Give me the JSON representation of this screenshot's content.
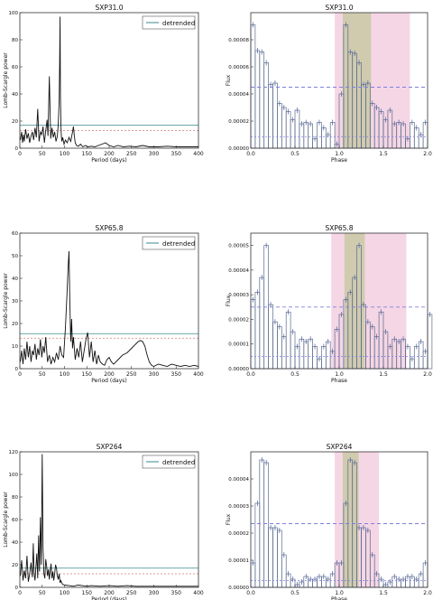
{
  "chart_data": [
    {
      "panel": "periodogram",
      "type": "line",
      "title": "SXP31.0",
      "xlabel": "Period (days)",
      "ylabel": "Lomb-Scargle power",
      "xlim": [
        0,
        400
      ],
      "ylim": [
        0,
        100
      ],
      "xticks": [
        0,
        50,
        100,
        150,
        200,
        250,
        300,
        350,
        400
      ],
      "yticks": [
        0,
        20,
        40,
        60,
        80,
        100
      ],
      "legend": {
        "label": "detrended",
        "placement": "top-right"
      },
      "thresholds": [
        17,
        13
      ],
      "x": [
        1,
        4,
        6,
        8,
        10,
        13,
        16,
        19,
        22,
        25,
        28,
        31,
        34,
        37,
        40,
        43,
        46,
        49,
        52,
        55,
        58,
        61,
        63,
        66,
        69,
        72,
        75,
        78,
        81,
        84,
        86,
        88,
        89,
        90,
        91,
        92,
        93,
        94,
        96,
        99,
        102,
        106,
        110,
        114,
        118,
        120,
        122,
        124,
        127,
        131,
        136,
        141,
        147,
        153,
        160,
        168,
        176,
        184,
        192,
        200,
        210,
        220,
        232,
        245,
        260,
        275,
        290,
        310,
        330,
        350,
        370,
        390,
        400
      ],
      "y": [
        6,
        12,
        4,
        10,
        5,
        14,
        7,
        11,
        4,
        9,
        12,
        6,
        15,
        8,
        29,
        5,
        12,
        10,
        16,
        4,
        13,
        21,
        9,
        53,
        7,
        15,
        8,
        12,
        5,
        9,
        18,
        35,
        62,
        97,
        40,
        18,
        9,
        5,
        8,
        3,
        6,
        4,
        8,
        5,
        12,
        16,
        9,
        4,
        2,
        1.5,
        3,
        1,
        2,
        1,
        1.5,
        1,
        2,
        3,
        4,
        2,
        1,
        2,
        1,
        1.5,
        1,
        2,
        1,
        1,
        1.5,
        1,
        1,
        1,
        1
      ]
    },
    {
      "panel": "phase",
      "type": "bar",
      "title": "SXP31.0",
      "xlabel": "Phase",
      "ylabel": "Flux",
      "xlim": [
        0,
        2
      ],
      "ylim": [
        0,
        0.0001
      ],
      "xticks": [
        0,
        0.5,
        1.0,
        1.5,
        2.0
      ],
      "yticks": [
        0,
        2e-05,
        4e-05,
        6e-05,
        8e-05
      ],
      "ytick_labels": [
        "0.00000",
        "0.00002",
        "0.00004",
        "0.00006",
        "0.00008"
      ],
      "xtick_labels": [
        "0.0",
        "0.5",
        "1.0",
        "1.5",
        "2.0"
      ],
      "phase_start": 0,
      "phase_bin": 0.05,
      "values": [
        9.1e-05,
        7.2e-05,
        7.1e-05,
        6.3e-05,
        4.7e-05,
        4.8e-05,
        3.3e-05,
        3e-05,
        2.7e-05,
        2.1e-05,
        2.8e-05,
        1.8e-05,
        1.9e-05,
        1.8e-05,
        7e-06,
        1.9e-05,
        1.5e-05,
        1e-05,
        1.9e-05,
        3e-06,
        4e-05,
        9.1e-05,
        7.1e-05,
        7e-05,
        6.3e-05,
        4.7e-05,
        4.8e-05,
        3.3e-05,
        3e-05,
        2.7e-05,
        2.1e-05,
        2.8e-05,
        1.8e-05,
        1.9e-05,
        1.8e-05,
        7e-06,
        1.9e-05,
        1.5e-05,
        1e-05,
        1.9e-05
      ],
      "mean_level": 4.5e-05,
      "low_level": 8.5e-06,
      "shaded_regions": [
        {
          "range": [
            0.95,
            1.8
          ],
          "color": "#f3cfe0"
        },
        {
          "range": [
            1.04,
            1.36
          ],
          "color": "#c9c9a6"
        }
      ]
    },
    {
      "panel": "periodogram",
      "type": "line",
      "title": "SXP65.8",
      "xlabel": "Period (days)",
      "ylabel": "Lomb-Scargle power",
      "xlim": [
        0,
        400
      ],
      "ylim": [
        0,
        60
      ],
      "xticks": [
        0,
        50,
        100,
        150,
        200,
        250,
        300,
        350,
        400
      ],
      "yticks": [
        0,
        10,
        20,
        30,
        40,
        50,
        60
      ],
      "legend": {
        "label": "detrended",
        "placement": "top-right"
      },
      "thresholds": [
        15.5,
        13.5
      ],
      "x": [
        1,
        4,
        7,
        10,
        13,
        16,
        19,
        22,
        25,
        28,
        31,
        34,
        37,
        40,
        43,
        46,
        49,
        52,
        55,
        58,
        62,
        66,
        70,
        74,
        78,
        82,
        86,
        90,
        94,
        98,
        102,
        106,
        108,
        110,
        112,
        114,
        116,
        118,
        120,
        124,
        128,
        132,
        136,
        140,
        144,
        148,
        152,
        156,
        160,
        164,
        168,
        172,
        176,
        180,
        185,
        190,
        195,
        200,
        205,
        210,
        220,
        230,
        240,
        250,
        260,
        265,
        270,
        275,
        280,
        285,
        290,
        295,
        300,
        310,
        320,
        330,
        340,
        350,
        360,
        370,
        380,
        390,
        400
      ],
      "y": [
        3,
        8,
        2,
        9,
        4,
        12,
        5,
        10,
        3,
        8,
        6,
        11,
        4,
        9,
        6,
        13,
        5,
        10,
        7,
        14,
        3,
        6,
        2,
        5,
        3,
        7,
        4,
        10,
        6,
        5,
        18,
        35,
        45,
        52,
        30,
        12,
        22,
        9,
        14,
        4,
        9,
        5,
        12,
        3,
        8,
        13,
        16,
        5,
        12,
        3,
        8,
        2,
        6,
        3,
        2,
        1.5,
        4,
        5,
        3,
        2,
        4,
        6,
        7,
        9,
        11,
        12,
        12.5,
        12,
        10,
        6,
        3,
        1.5,
        1,
        2,
        1.5,
        1,
        2,
        1.5,
        1,
        1.5,
        1,
        1.5,
        1
      ]
    },
    {
      "panel": "phase",
      "type": "bar",
      "title": "SXP65.8",
      "xlabel": "Phase",
      "ylabel": "Flux",
      "xlim": [
        0,
        2
      ],
      "ylim": [
        0,
        5.5e-05
      ],
      "xticks": [
        0,
        0.5,
        1.0,
        1.5,
        2.0
      ],
      "yticks": [
        0,
        1e-05,
        2e-05,
        3e-05,
        4e-05,
        5e-05
      ],
      "ytick_labels": [
        "0.00000",
        "0.00001",
        "0.00002",
        "0.00003",
        "0.00004",
        "0.00005"
      ],
      "xtick_labels": [
        "0.0",
        "0.5",
        "1.0",
        "1.5",
        "2.0"
      ],
      "phase_start": 0,
      "phase_bin": 0.05,
      "values": [
        2.8e-05,
        3.1e-05,
        3.7e-05,
        5e-05,
        2.6e-05,
        1.9e-05,
        1.7e-05,
        1.3e-05,
        2.3e-05,
        1.5e-05,
        9e-06,
        1.2e-05,
        1.1e-05,
        1.2e-05,
        9e-06,
        4e-06,
        9e-06,
        1.1e-05,
        7e-06,
        1.6e-05,
        2.2e-05,
        2.8e-05,
        3.1e-05,
        3.7e-05,
        5e-05,
        2.6e-05,
        1.9e-05,
        1.7e-05,
        1.3e-05,
        2.3e-05,
        1.5e-05,
        9e-06,
        1.2e-05,
        1.1e-05,
        1.2e-05,
        9e-06,
        4e-06,
        9e-06,
        1.1e-05,
        7e-06,
        2.2e-05
      ],
      "mean_level": 2.5e-05,
      "low_level": 5e-06,
      "shaded_regions": [
        {
          "range": [
            0.91,
            1.76
          ],
          "color": "#f3cfe0"
        },
        {
          "range": [
            1.06,
            1.29
          ],
          "color": "#c9c9a6"
        }
      ]
    },
    {
      "panel": "periodogram",
      "type": "line",
      "title": "SXP264",
      "xlabel": "Period (days)",
      "ylabel": "Lomb-Scargle power",
      "xlim": [
        0,
        400
      ],
      "ylim": [
        0,
        120
      ],
      "xticks": [
        0,
        50,
        100,
        150,
        200,
        250,
        300,
        350,
        400
      ],
      "yticks": [
        0,
        20,
        40,
        60,
        80,
        100,
        120
      ],
      "legend": {
        "label": "detrended",
        "placement": "top-right"
      },
      "thresholds": [
        17,
        12
      ],
      "x": [
        1,
        4,
        7,
        10,
        13,
        16,
        19,
        22,
        25,
        28,
        30,
        32,
        34,
        36,
        38,
        40,
        42,
        44,
        46,
        48,
        50,
        52,
        54,
        56,
        58,
        60,
        62,
        64,
        66,
        68,
        70,
        72,
        74,
        76,
        78,
        80,
        82,
        84,
        86,
        88,
        90,
        92,
        95,
        100,
        110,
        120,
        130,
        140,
        150,
        160,
        180,
        200,
        220,
        240,
        260,
        280,
        300,
        320,
        340,
        360,
        380,
        400
      ],
      "y": [
        10,
        24,
        6,
        15,
        8,
        28,
        5,
        12,
        22,
        9,
        39,
        12,
        6,
        18,
        30,
        8,
        46,
        14,
        62,
        20,
        118,
        35,
        12,
        8,
        25,
        19,
        10,
        16,
        7,
        15,
        21,
        8,
        14,
        6,
        12,
        20,
        17,
        10,
        7,
        12,
        4,
        6,
        3,
        2,
        1.5,
        1,
        2,
        1.5,
        1,
        1.5,
        1,
        1.5,
        1,
        1.5,
        1,
        1,
        1,
        1,
        1,
        1,
        1,
        1
      ]
    },
    {
      "panel": "phase",
      "type": "bar",
      "title": "SXP264",
      "xlabel": "Phase",
      "ylabel": "Flux",
      "xlim": [
        0,
        2
      ],
      "ylim": [
        0,
        5e-05
      ],
      "xticks": [
        0,
        0.5,
        1.0,
        1.5,
        2.0
      ],
      "yticks": [
        0,
        1e-05,
        2e-05,
        3e-05,
        4e-05
      ],
      "ytick_labels": [
        "0.00000",
        "0.00001",
        "0.00002",
        "0.00003",
        "0.00004"
      ],
      "xtick_labels": [
        "0.0",
        "0.5",
        "1.0",
        "1.5",
        "2.0"
      ],
      "phase_start": 0,
      "phase_bin": 0.05,
      "values": [
        9e-06,
        3.1e-05,
        4.7e-05,
        4.6e-05,
        2.2e-05,
        2.2e-05,
        2.1e-05,
        1.2e-05,
        5e-06,
        3e-06,
        1e-06,
        2e-06,
        4e-06,
        3e-06,
        3e-06,
        4e-06,
        4e-06,
        3e-06,
        5e-06,
        9e-06,
        9e-06,
        3.1e-05,
        4.7e-05,
        4.6e-05,
        2.2e-05,
        2.2e-05,
        2.1e-05,
        1.2e-05,
        5e-06,
        3e-06,
        1e-06,
        2e-06,
        4e-06,
        3e-06,
        3e-06,
        4e-06,
        4e-06,
        3e-06,
        5e-06,
        9e-06
      ],
      "mean_level": 2.35e-05,
      "low_level": 2.5e-06,
      "shaded_regions": [
        {
          "range": [
            0.95,
            1.45
          ],
          "color": "#f3cfe0"
        },
        {
          "range": [
            1.04,
            1.22
          ],
          "color": "#c9c9a6"
        }
      ]
    }
  ]
}
